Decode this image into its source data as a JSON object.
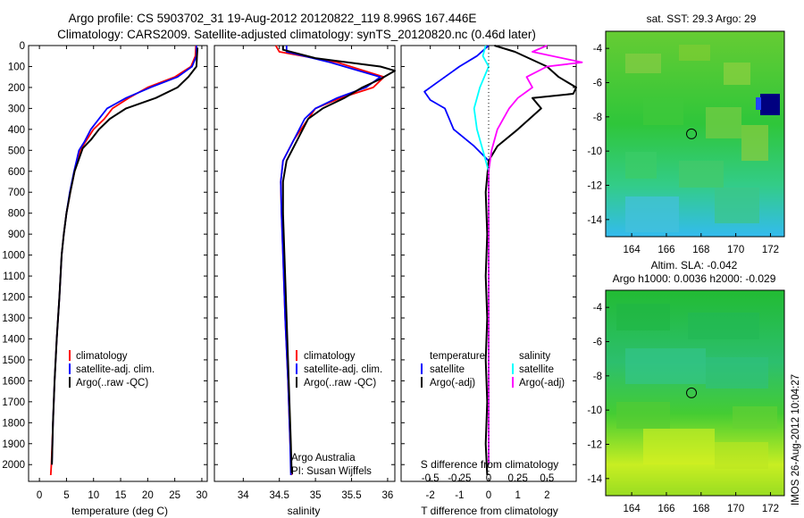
{
  "title": {
    "line1": "Argo profile: CS 5903702_31 19-Aug-2012 20120822_119 8.996S 167.446E",
    "line2": "Climatology: CARS2009. Satellite-adjusted climatology: synTS_20120820.nc (0.46d later)"
  },
  "stamp": "IMOS 26-Aug-2012 10:04:27",
  "credit": {
    "line1": "Argo Australia",
    "line2": "PI: Susan Wijffels"
  },
  "colors": {
    "clim": "#ff0000",
    "sat": "#0000ff",
    "argo": "#000000",
    "sat_s": "#00ffff",
    "argo_s": "#ff00ff"
  },
  "chart_data": [
    {
      "type": "line",
      "xlabel": "temperature (deg C)",
      "ylabel": "",
      "xlim": [
        -2,
        31
      ],
      "ylim": [
        2080,
        0
      ],
      "xticks": [
        0,
        5,
        10,
        15,
        20,
        25,
        30
      ],
      "yticks": [
        0,
        100,
        200,
        300,
        400,
        500,
        600,
        700,
        800,
        900,
        1000,
        1100,
        1200,
        1300,
        1400,
        1500,
        1600,
        1700,
        1800,
        1900,
        2000
      ],
      "legend": [
        "climatology",
        "satellite-adj. clim.",
        "Argo(..raw -QC)"
      ],
      "legend_position": "lower-center",
      "series": [
        {
          "name": "climatology",
          "color": "#ff0000",
          "points": [
            [
              28.9,
              0
            ],
            [
              28.8,
              50
            ],
            [
              28.0,
              100
            ],
            [
              25.0,
              150
            ],
            [
              20.0,
              200
            ],
            [
              16.5,
              250
            ],
            [
              13.5,
              300
            ],
            [
              12.0,
              350
            ],
            [
              10.0,
              400
            ],
            [
              8.5,
              460
            ],
            [
              7.5,
              500
            ],
            [
              6.5,
              600
            ],
            [
              5.7,
              700
            ],
            [
              5.0,
              800
            ],
            [
              4.5,
              900
            ],
            [
              4.1,
              1000
            ],
            [
              3.7,
              1200
            ],
            [
              3.2,
              1400
            ],
            [
              2.8,
              1600
            ],
            [
              2.5,
              1800
            ],
            [
              2.2,
              2000
            ],
            [
              2.1,
              2050
            ]
          ]
        },
        {
          "name": "satellite-adj. clim.",
          "color": "#0000ff",
          "points": [
            [
              29.0,
              0
            ],
            [
              29.0,
              50
            ],
            [
              28.2,
              100
            ],
            [
              25.5,
              150
            ],
            [
              20.5,
              200
            ],
            [
              16.0,
              250
            ],
            [
              12.5,
              300
            ],
            [
              11.0,
              350
            ],
            [
              9.5,
              400
            ],
            [
              8.3,
              460
            ],
            [
              7.3,
              500
            ],
            [
              6.4,
              600
            ],
            [
              5.6,
              700
            ],
            [
              5.0,
              800
            ],
            [
              4.5,
              900
            ],
            [
              4.1,
              1000
            ],
            [
              3.7,
              1200
            ],
            [
              3.2,
              1400
            ],
            [
              2.8,
              1600
            ],
            [
              2.5,
              1800
            ],
            [
              2.3,
              2000
            ]
          ]
        },
        {
          "name": "Argo(..raw -QC)",
          "color": "#000000",
          "points": [
            [
              29.2,
              10
            ],
            [
              29.1,
              50
            ],
            [
              29.0,
              100
            ],
            [
              27.5,
              150
            ],
            [
              25.5,
              200
            ],
            [
              21.5,
              250
            ],
            [
              16.0,
              300
            ],
            [
              13.0,
              350
            ],
            [
              11.0,
              400
            ],
            [
              9.5,
              450
            ],
            [
              8.0,
              490
            ],
            [
              6.5,
              600
            ],
            [
              5.7,
              700
            ],
            [
              5.0,
              800
            ],
            [
              4.5,
              900
            ],
            [
              4.1,
              1000
            ],
            [
              3.7,
              1200
            ],
            [
              3.2,
              1400
            ],
            [
              2.8,
              1600
            ],
            [
              2.5,
              1800
            ],
            [
              2.3,
              2000
            ]
          ]
        }
      ]
    },
    {
      "type": "line",
      "xlabel": "salinity",
      "xlim": [
        33.6,
        36.1
      ],
      "ylim": [
        2080,
        0
      ],
      "xticks": [
        34,
        34.5,
        35,
        35.5,
        36
      ],
      "legend": [
        "climatology",
        "satellite-adj. clim.",
        "Argo(..raw -QC)"
      ],
      "legend_position": "lower-right",
      "series": [
        {
          "name": "climatology",
          "color": "#ff0000",
          "points": [
            [
              34.45,
              0
            ],
            [
              34.5,
              30
            ],
            [
              35.3,
              80
            ],
            [
              35.95,
              150
            ],
            [
              35.8,
              200
            ],
            [
              35.35,
              250
            ],
            [
              35.0,
              300
            ],
            [
              34.9,
              350
            ],
            [
              34.7,
              450
            ],
            [
              34.55,
              550
            ],
            [
              34.52,
              650
            ],
            [
              34.53,
              800
            ],
            [
              34.55,
              1000
            ],
            [
              34.58,
              1300
            ],
            [
              34.62,
              1600
            ],
            [
              34.65,
              1900
            ],
            [
              34.67,
              2050
            ]
          ]
        },
        {
          "name": "satellite-adj. clim.",
          "color": "#0000ff",
          "points": [
            [
              34.6,
              0
            ],
            [
              34.6,
              30
            ],
            [
              35.2,
              80
            ],
            [
              35.9,
              150
            ],
            [
              35.7,
              200
            ],
            [
              35.3,
              250
            ],
            [
              35.0,
              300
            ],
            [
              34.85,
              350
            ],
            [
              34.7,
              450
            ],
            [
              34.55,
              550
            ],
            [
              34.52,
              650
            ],
            [
              34.53,
              800
            ],
            [
              34.55,
              1000
            ],
            [
              34.58,
              1300
            ],
            [
              34.62,
              1600
            ],
            [
              34.65,
              1900
            ],
            [
              34.66,
              2050
            ]
          ]
        },
        {
          "name": "Argo(..raw -QC)",
          "color": "#000000",
          "points": [
            [
              34.55,
              0
            ],
            [
              34.55,
              20
            ],
            [
              35.0,
              60
            ],
            [
              35.9,
              100
            ],
            [
              36.1,
              120
            ],
            [
              35.9,
              160
            ],
            [
              35.65,
              200
            ],
            [
              35.4,
              250
            ],
            [
              35.1,
              300
            ],
            [
              34.9,
              350
            ],
            [
              34.75,
              450
            ],
            [
              34.6,
              550
            ],
            [
              34.55,
              650
            ],
            [
              34.55,
              800
            ],
            [
              34.57,
              1000
            ],
            [
              34.6,
              1300
            ],
            [
              34.63,
              1600
            ],
            [
              34.66,
              1900
            ],
            [
              34.67,
              2040
            ]
          ]
        }
      ]
    },
    {
      "type": "line",
      "xlabel": "T difference from climatology",
      "x2label": "S difference from climatology",
      "xlim": [
        -3,
        3
      ],
      "ylim": [
        2080,
        0
      ],
      "xticks": [
        -2,
        -1,
        0,
        1,
        2
      ],
      "s_ticks": [
        "-0.5",
        "-0.25",
        "0",
        "0.25",
        "0.5"
      ],
      "legend_left_title": "temperature",
      "legend_right_title": "salinity",
      "legend_left": [
        "satellite",
        "Argo(-adj)"
      ],
      "legend_right": [
        "satellite",
        "Argo(-adj)"
      ],
      "series": [
        {
          "name": "temperature satellite",
          "color": "#0000ff",
          "points": [
            [
              0.0,
              0
            ],
            [
              -0.4,
              50
            ],
            [
              -1.0,
              100
            ],
            [
              -1.8,
              180
            ],
            [
              -2.2,
              220
            ],
            [
              -2.0,
              260
            ],
            [
              -1.5,
              300
            ],
            [
              -1.2,
              400
            ],
            [
              -0.5,
              480
            ],
            [
              0.0,
              550
            ],
            [
              0.0,
              700
            ],
            [
              0.0,
              1000
            ],
            [
              0.0,
              1500
            ],
            [
              0.0,
              2000
            ]
          ]
        },
        {
          "name": "temperature Argo(-adj)",
          "color": "#000000",
          "points": [
            [
              0.2,
              0
            ],
            [
              0.9,
              30
            ],
            [
              2.0,
              100
            ],
            [
              2.4,
              150
            ],
            [
              3.0,
              200
            ],
            [
              2.9,
              230
            ],
            [
              1.5,
              250
            ],
            [
              1.8,
              300
            ],
            [
              1.0,
              400
            ],
            [
              0.3,
              480
            ],
            [
              0.0,
              550
            ],
            [
              -0.1,
              700
            ],
            [
              -0.05,
              900
            ],
            [
              -0.1,
              1100
            ],
            [
              -0.05,
              1300
            ],
            [
              -0.1,
              1500
            ],
            [
              -0.05,
              1700
            ],
            [
              -0.1,
              1900
            ],
            [
              -0.05,
              2050
            ]
          ]
        },
        {
          "name": "salinity satellite",
          "color": "#00ffff",
          "points": [
            [
              -0.1,
              0
            ],
            [
              -0.2,
              50
            ],
            [
              0.0,
              100
            ],
            [
              -0.3,
              200
            ],
            [
              -0.5,
              300
            ],
            [
              -0.4,
              400
            ],
            [
              -0.2,
              500
            ],
            [
              0.0,
              600
            ],
            [
              0.0,
              800
            ],
            [
              0.0,
              1200
            ],
            [
              0.0,
              1600
            ],
            [
              0.0,
              2000
            ]
          ]
        },
        {
          "name": "salinity Argo(-adj)",
          "color": "#ff00ff",
          "points": [
            [
              2.0,
              0
            ],
            [
              1.5,
              30
            ],
            [
              3.2,
              80
            ],
            [
              2.0,
              100
            ],
            [
              1.3,
              150
            ],
            [
              1.5,
              200
            ],
            [
              1.0,
              250
            ],
            [
              0.7,
              300
            ],
            [
              0.3,
              400
            ],
            [
              0.1,
              500
            ],
            [
              0.0,
              600
            ],
            [
              0.0,
              800
            ],
            [
              0.0,
              1000
            ],
            [
              0.0,
              1500
            ],
            [
              0.0,
              2000
            ]
          ]
        }
      ]
    },
    {
      "type": "heatmap",
      "title": "sat. SST: 29.3 Argo: 29",
      "xticks": [
        164,
        166,
        168,
        170,
        172
      ],
      "yticks": [
        -4,
        -6,
        -8,
        -10,
        -12,
        -14
      ],
      "xlim": [
        162.5,
        172.8
      ],
      "ylim": [
        -15,
        -3
      ],
      "marker": {
        "x": 167.446,
        "y": -8.996
      }
    },
    {
      "type": "heatmap",
      "title": "Altim. SLA: -0.042",
      "subtitle": "Argo h1000: 0.0036 h2000: -0.029",
      "xticks": [
        164,
        166,
        168,
        170,
        172
      ],
      "yticks": [
        -4,
        -6,
        -8,
        -10,
        -12,
        -14
      ],
      "xlim": [
        162.5,
        172.8
      ],
      "ylim": [
        -15,
        -3
      ],
      "marker": {
        "x": 167.446,
        "y": -8.996
      }
    }
  ]
}
